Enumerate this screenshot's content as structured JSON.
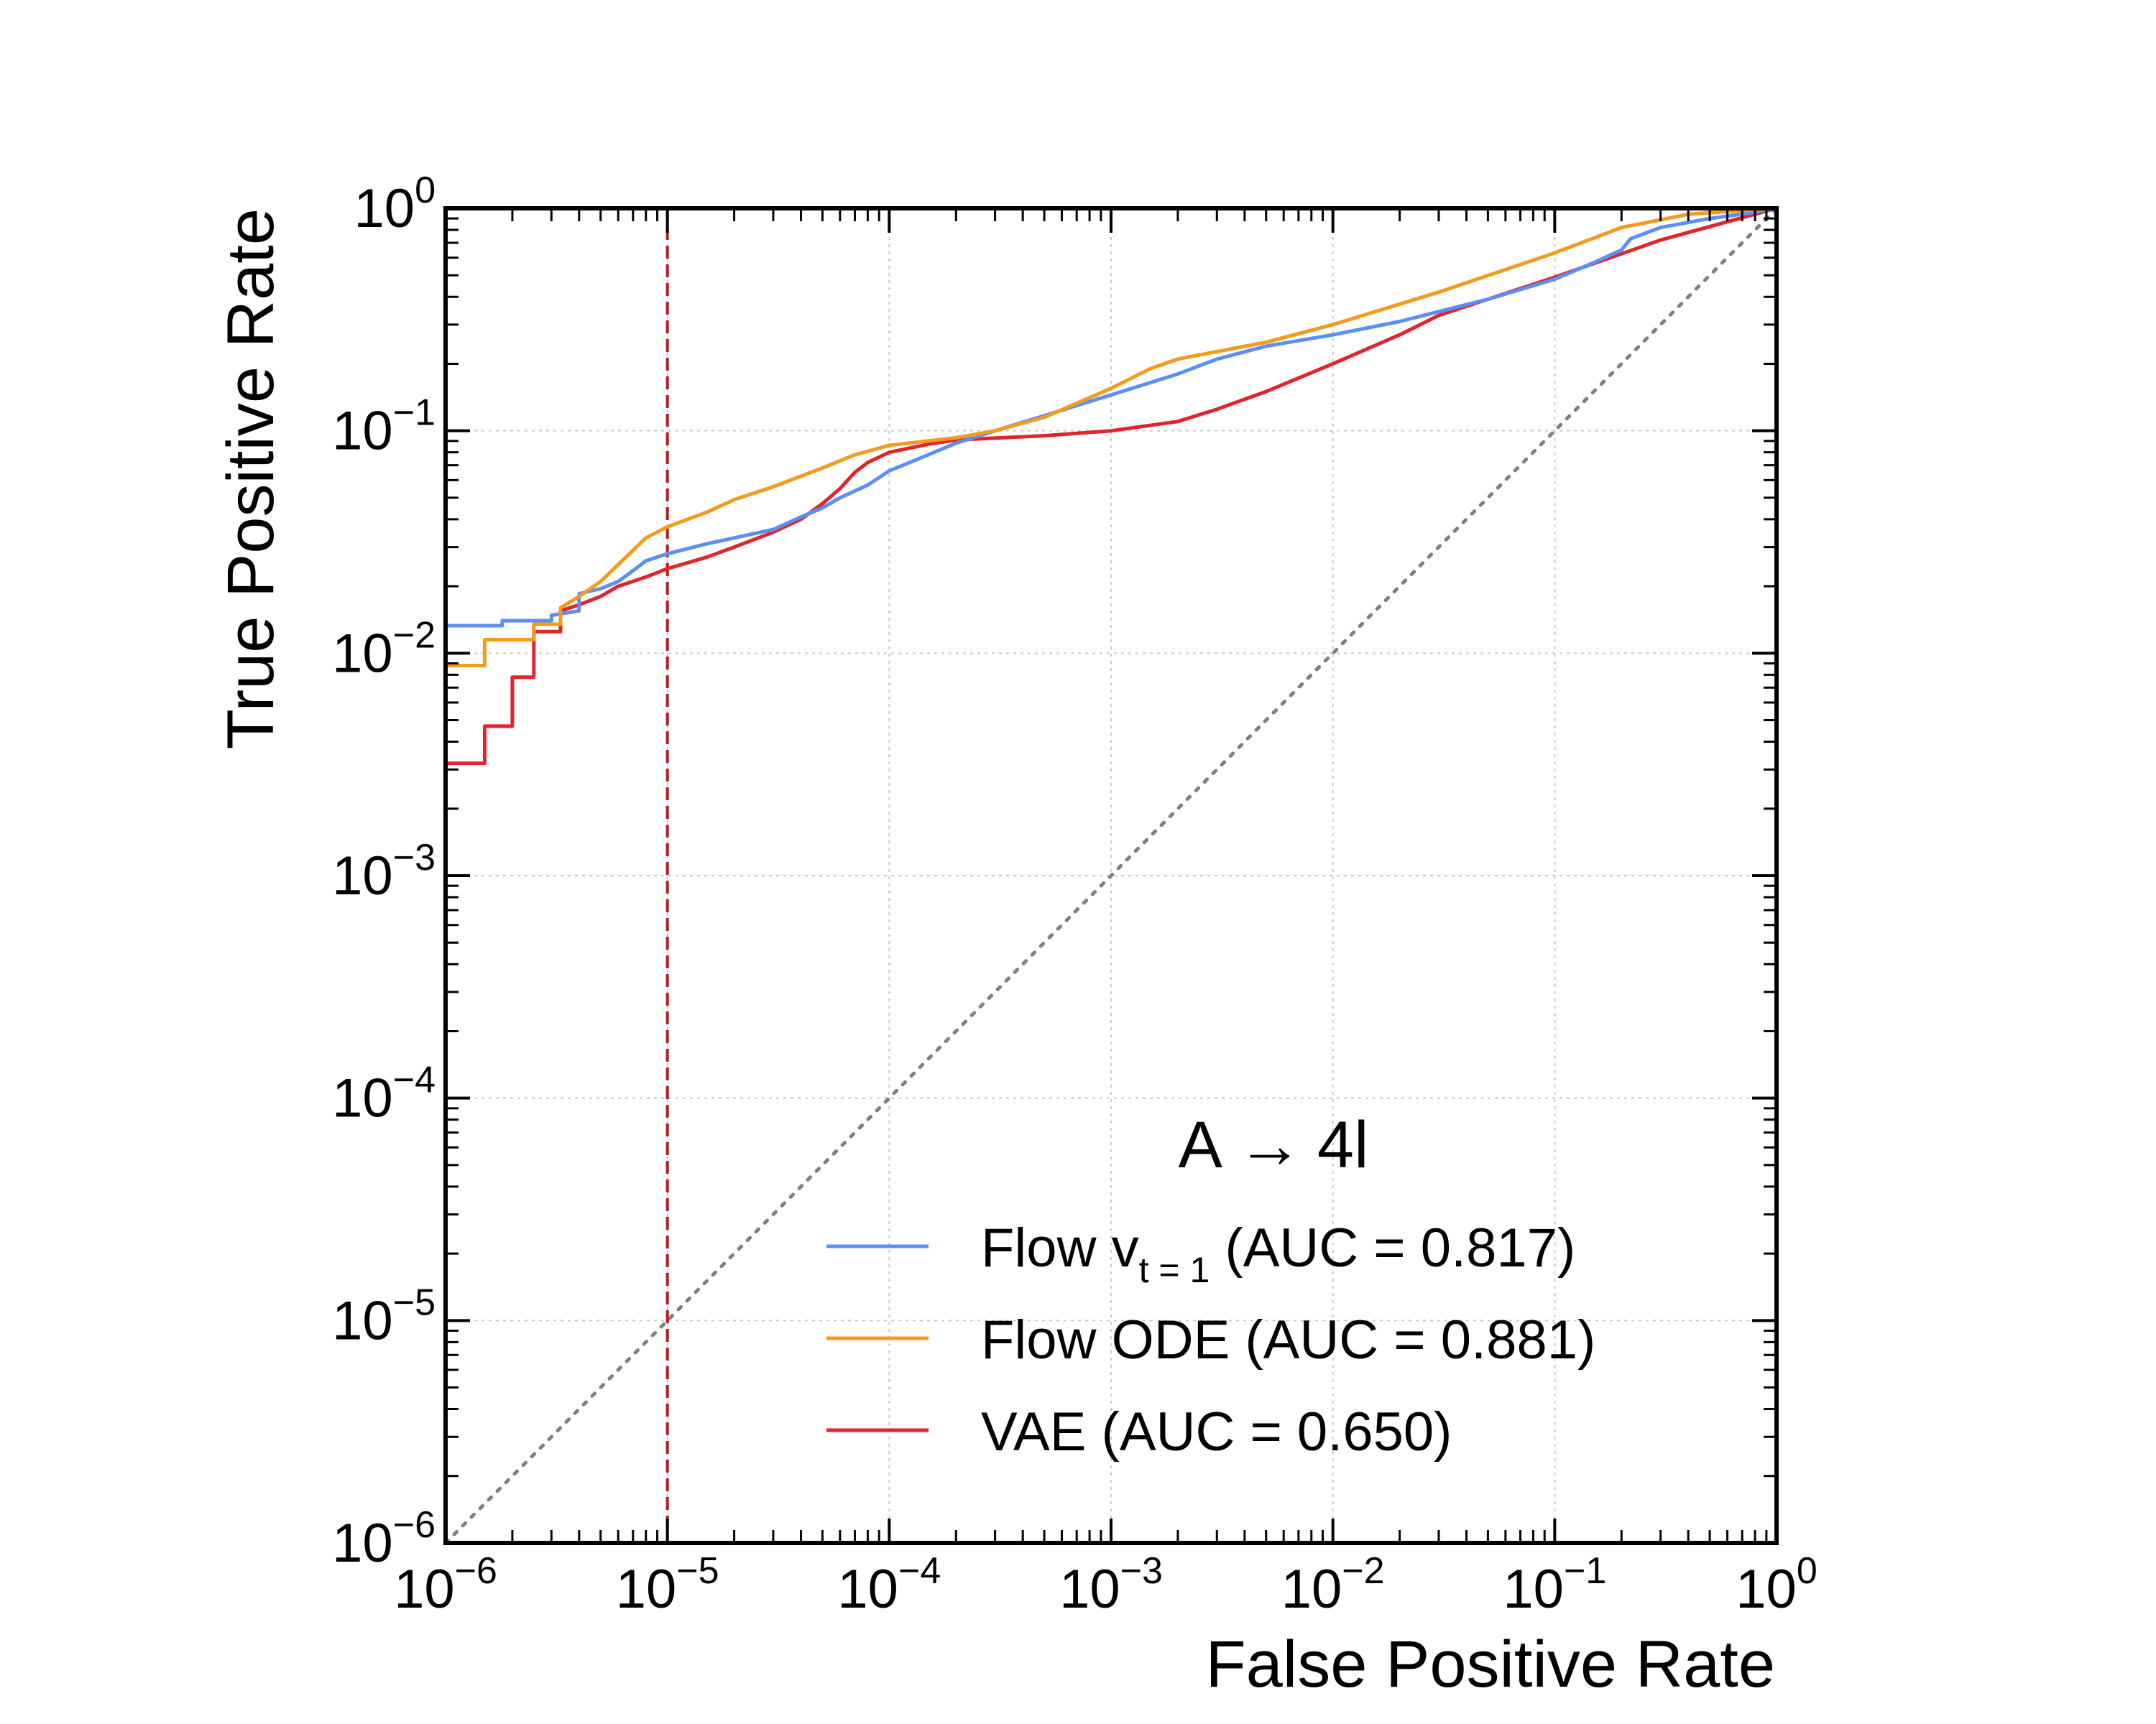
{
  "chart_data": {
    "type": "line",
    "title": "",
    "xlabel": "False Positive Rate",
    "ylabel": "True Positive Rate",
    "xscale": "log",
    "yscale": "log",
    "xlim": [
      1e-06,
      1
    ],
    "ylim": [
      1e-06,
      1
    ],
    "x_ticks": [
      {
        "base": "10",
        "exp": "−6"
      },
      {
        "base": "10",
        "exp": "−5"
      },
      {
        "base": "10",
        "exp": "−4"
      },
      {
        "base": "10",
        "exp": "−3"
      },
      {
        "base": "10",
        "exp": "−2"
      },
      {
        "base": "10",
        "exp": "−1"
      },
      {
        "base": "10",
        "exp": "0"
      }
    ],
    "y_ticks": [
      {
        "base": "10",
        "exp": "−6"
      },
      {
        "base": "10",
        "exp": "−5"
      },
      {
        "base": "10",
        "exp": "−4"
      },
      {
        "base": "10",
        "exp": "−3"
      },
      {
        "base": "10",
        "exp": "−2"
      },
      {
        "base": "10",
        "exp": "−1"
      },
      {
        "base": "10",
        "exp": "0"
      }
    ],
    "grid": true,
    "legend_position": "bottom-right",
    "annotation": {
      "prefix": "A",
      "arrow": "→",
      "suffix": "4l"
    },
    "reference_line": {
      "x": 1e-05,
      "color": "#b01f1f",
      "style": "dashed"
    },
    "random_line": {
      "color": "#808080",
      "style": "dotted"
    },
    "series": [
      {
        "name": "Flow v t=1",
        "legend": {
          "prefix": "Flow v",
          "sub": "t = 1",
          "suffix": " (AUC = 0.817)"
        },
        "color": "#5b8ff5",
        "points": [
          [
            1e-06,
            0.0133
          ],
          [
            1.8e-06,
            0.0133
          ],
          [
            1.8e-06,
            0.014
          ],
          [
            3e-06,
            0.014
          ],
          [
            3e-06,
            0.0148
          ],
          [
            4e-06,
            0.0155
          ],
          [
            4e-06,
            0.0185
          ],
          [
            5e-06,
            0.0195
          ],
          [
            6e-06,
            0.021
          ],
          [
            7e-06,
            0.0235
          ],
          [
            8e-06,
            0.026
          ],
          [
            1e-05,
            0.028
          ],
          [
            1.5e-05,
            0.031
          ],
          [
            2e-05,
            0.033
          ],
          [
            3e-05,
            0.036
          ],
          [
            4e-05,
            0.041
          ],
          [
            5e-05,
            0.045
          ],
          [
            6e-05,
            0.05
          ],
          [
            8e-05,
            0.057
          ],
          [
            0.0001,
            0.066
          ],
          [
            0.00015,
            0.078
          ],
          [
            0.0002,
            0.088
          ],
          [
            0.0003,
            0.1
          ],
          [
            0.0005,
            0.117
          ],
          [
            0.001,
            0.145
          ],
          [
            0.002,
            0.18
          ],
          [
            0.003,
            0.21
          ],
          [
            0.005,
            0.24
          ],
          [
            0.01,
            0.27
          ],
          [
            0.02,
            0.31
          ],
          [
            0.05,
            0.39
          ],
          [
            0.1,
            0.48
          ],
          [
            0.15,
            0.57
          ],
          [
            0.2,
            0.65
          ],
          [
            0.22,
            0.73
          ],
          [
            0.3,
            0.82
          ],
          [
            0.5,
            0.9
          ],
          [
            0.8,
            0.96
          ],
          [
            1,
            1
          ]
        ]
      },
      {
        "name": "Flow ODE",
        "legend": {
          "prefix": "Flow ODE",
          "sub": "",
          "suffix": " (AUC = 0.881)"
        },
        "color": "#f39b1f",
        "points": [
          [
            1e-06,
            0.0088
          ],
          [
            1.5e-06,
            0.0088
          ],
          [
            1.5e-06,
            0.0115
          ],
          [
            2.5e-06,
            0.0115
          ],
          [
            2.5e-06,
            0.0135
          ],
          [
            3.3e-06,
            0.0135
          ],
          [
            3.3e-06,
            0.016
          ],
          [
            4e-06,
            0.018
          ],
          [
            5e-06,
            0.021
          ],
          [
            6e-06,
            0.025
          ],
          [
            7e-06,
            0.029
          ],
          [
            8e-06,
            0.033
          ],
          [
            1e-05,
            0.037
          ],
          [
            1.5e-05,
            0.043
          ],
          [
            2e-05,
            0.049
          ],
          [
            3e-05,
            0.056
          ],
          [
            5e-05,
            0.068
          ],
          [
            7e-05,
            0.078
          ],
          [
            0.0001,
            0.086
          ],
          [
            0.0002,
            0.093
          ],
          [
            0.0003,
            0.1
          ],
          [
            0.0005,
            0.115
          ],
          [
            0.001,
            0.155
          ],
          [
            0.0015,
            0.19
          ],
          [
            0.002,
            0.21
          ],
          [
            0.005,
            0.25
          ],
          [
            0.01,
            0.3
          ],
          [
            0.03,
            0.42
          ],
          [
            0.1,
            0.63
          ],
          [
            0.2,
            0.82
          ],
          [
            0.4,
            0.94
          ],
          [
            1,
            1
          ]
        ]
      },
      {
        "name": "VAE",
        "legend": {
          "prefix": "VAE",
          "sub": "",
          "suffix": " (AUC = 0.650)"
        },
        "color": "#e0252c",
        "points": [
          [
            1e-06,
            0.0032
          ],
          [
            1.5e-06,
            0.0032
          ],
          [
            1.5e-06,
            0.0047
          ],
          [
            2e-06,
            0.0047
          ],
          [
            2e-06,
            0.0078
          ],
          [
            2.5e-06,
            0.0078
          ],
          [
            2.5e-06,
            0.0125
          ],
          [
            3.3e-06,
            0.0125
          ],
          [
            3.3e-06,
            0.0155
          ],
          [
            4e-06,
            0.0165
          ],
          [
            5e-06,
            0.018
          ],
          [
            6e-06,
            0.02
          ],
          [
            8e-06,
            0.022
          ],
          [
            1e-05,
            0.024
          ],
          [
            1.5e-05,
            0.027
          ],
          [
            2e-05,
            0.03
          ],
          [
            3e-05,
            0.035
          ],
          [
            4e-05,
            0.04
          ],
          [
            5e-05,
            0.047
          ],
          [
            6e-05,
            0.055
          ],
          [
            7e-05,
            0.065
          ],
          [
            8e-05,
            0.072
          ],
          [
            0.0001,
            0.08
          ],
          [
            0.00015,
            0.087
          ],
          [
            0.0002,
            0.091
          ],
          [
            0.0005,
            0.095
          ],
          [
            0.001,
            0.1
          ],
          [
            0.002,
            0.11
          ],
          [
            0.003,
            0.125
          ],
          [
            0.005,
            0.15
          ],
          [
            0.01,
            0.2
          ],
          [
            0.02,
            0.27
          ],
          [
            0.03,
            0.33
          ],
          [
            0.1,
            0.49
          ],
          [
            0.3,
            0.72
          ],
          [
            1,
            1
          ]
        ]
      }
    ]
  }
}
